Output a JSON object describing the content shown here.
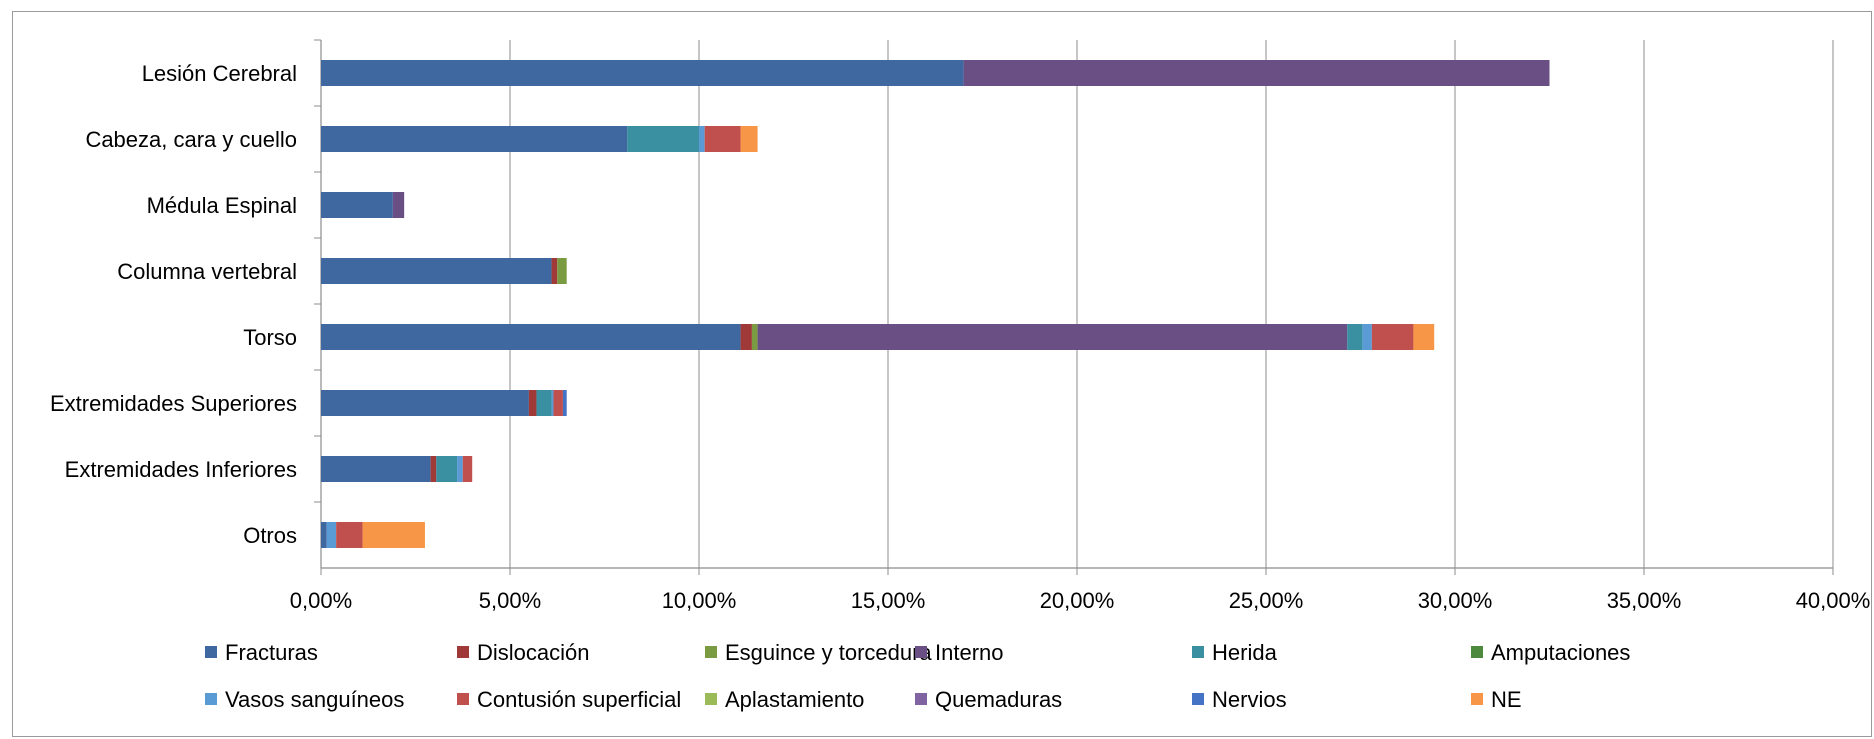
{
  "chart_data": {
    "type": "bar",
    "orientation": "horizontal",
    "stacked": true,
    "categories": [
      "Lesión Cerebral",
      "Cabeza, cara y cuello",
      "Médula Espinal",
      "Columna vertebral",
      "Torso",
      "Extremidades Superiores",
      "Extremidades Inferiores",
      "Otros"
    ],
    "series": [
      {
        "name": "Fracturas",
        "color": "#4068A0",
        "values": [
          17.0,
          8.1,
          1.9,
          6.1,
          11.1,
          5.5,
          2.9,
          0.15
        ]
      },
      {
        "name": "Dislocación",
        "color": "#A03A38",
        "values": [
          0,
          0,
          0,
          0.15,
          0.3,
          0.2,
          0.15,
          0
        ]
      },
      {
        "name": "Esguince y torcedura",
        "color": "#7B9B43",
        "values": [
          0,
          0,
          0,
          0.25,
          0.15,
          0,
          0,
          0
        ]
      },
      {
        "name": "Interno",
        "color": "#6A4F85",
        "values": [
          15.5,
          0,
          0.3,
          0,
          15.6,
          0,
          0,
          0
        ]
      },
      {
        "name": "Herida",
        "color": "#3A8FA0",
        "values": [
          0,
          1.9,
          0,
          0,
          0.4,
          0.4,
          0.55,
          0
        ]
      },
      {
        "name": "Amputaciones",
        "color": "#4E8A3E",
        "values": [
          0,
          0,
          0,
          0,
          0,
          0,
          0,
          0
        ]
      },
      {
        "name": "Vasos sanguíneos",
        "color": "#5B9BD5",
        "values": [
          0,
          0.15,
          0,
          0,
          0.25,
          0.05,
          0.15,
          0.25
        ]
      },
      {
        "name": "Contusión superficial",
        "color": "#C0504D",
        "values": [
          0,
          0.95,
          0,
          0,
          1.1,
          0.25,
          0.25,
          0.7
        ]
      },
      {
        "name": "Aplastamiento",
        "color": "#9BBB59",
        "values": [
          0,
          0,
          0,
          0,
          0,
          0,
          0,
          0
        ]
      },
      {
        "name": "Quemaduras",
        "color": "#8064A2",
        "values": [
          0,
          0,
          0,
          0,
          0,
          0,
          0,
          0
        ]
      },
      {
        "name": "Nervios",
        "color": "#4472C4",
        "values": [
          0,
          0,
          0,
          0,
          0,
          0.1,
          0,
          0
        ]
      },
      {
        "name": "NE",
        "color": "#F79646",
        "values": [
          0,
          0.45,
          0,
          0,
          0.55,
          0,
          0,
          1.65
        ]
      }
    ],
    "xlim": [
      0,
      40
    ],
    "x_ticks": [
      "0,00%",
      "5,00%",
      "10,00%",
      "15,00%",
      "20,00%",
      "25,00%",
      "30,00%",
      "35,00%",
      "40,00%"
    ],
    "grid": "vertical",
    "legend": "bottom",
    "title": "",
    "xlabel": "",
    "ylabel": ""
  }
}
